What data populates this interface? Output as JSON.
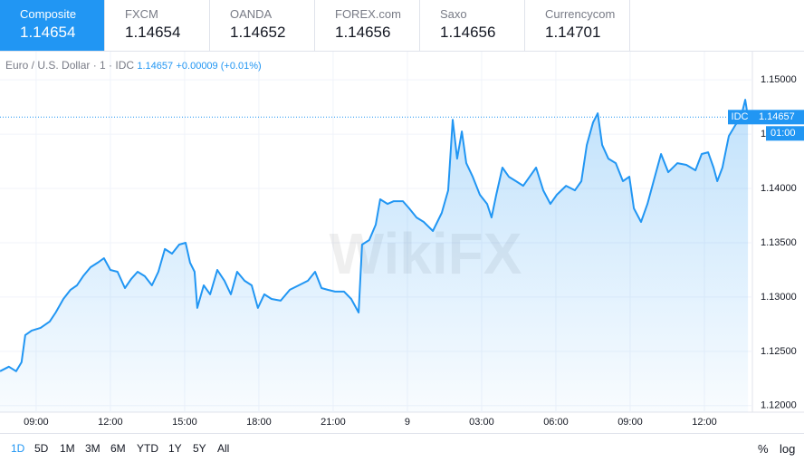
{
  "tabs": [
    {
      "name": "Composite",
      "price": 1.14654,
      "active": true
    },
    {
      "name": "FXCM",
      "price": 1.14654
    },
    {
      "name": "OANDA",
      "price": 1.14652
    },
    {
      "name": "FOREX.com",
      "price": 1.14656
    },
    {
      "name": "Saxo",
      "price": 1.14656
    },
    {
      "name": "Currencycom",
      "price": 1.14701
    }
  ],
  "chart_data": {
    "type": "area-line",
    "watermark": "WikiFX",
    "legend": {
      "change": "+0.00009 (+0.01%)",
      "value": 1.14657
    },
    "price_line": {
      "source": "IDC",
      "value": 1.14657,
      "countdown": "01:00",
      "color": "#2196f3"
    },
    "grid": true,
    "xlim": [
      7.54,
      37.94
    ],
    "ylim": [
      1.1194,
      1.1526
    ],
    "xticks": [
      {
        "value": 9,
        "label": "09:00"
      },
      {
        "value": 12,
        "label": "12:00"
      },
      {
        "value": 15,
        "label": "15:00"
      },
      {
        "value": 18,
        "label": "18:00"
      },
      {
        "value": 21,
        "label": "21:00"
      },
      {
        "value": 24,
        "label": "9"
      },
      {
        "value": 27,
        "label": "03:00"
      },
      {
        "value": 30,
        "label": "06:00"
      },
      {
        "value": 33,
        "label": "09:00"
      },
      {
        "value": 36,
        "label": "12:00"
      }
    ],
    "yticks": [
      {
        "value": 1.12,
        "label": "1.12000"
      },
      {
        "value": 1.125,
        "label": "1.12500"
      },
      {
        "value": 1.13,
        "label": "1.13000"
      },
      {
        "value": 1.135,
        "label": "1.13500"
      },
      {
        "value": 1.14,
        "label": "1.14000"
      },
      {
        "value": 1.145,
        "label": "1.14500"
      },
      {
        "value": 1.15,
        "label": "1.15000"
      }
    ],
    "x": [
      7.54,
      7.9,
      8.19,
      8.41,
      8.56,
      8.82,
      9.18,
      9.55,
      9.79,
      10.1,
      10.39,
      10.65,
      10.9,
      11.2,
      11.49,
      11.74,
      12.0,
      12.29,
      12.59,
      12.84,
      13.1,
      13.39,
      13.68,
      13.94,
      14.2,
      14.49,
      14.78,
      15.04,
      15.22,
      15.4,
      15.51,
      15.77,
      16.03,
      16.32,
      16.61,
      16.87,
      17.12,
      17.42,
      17.71,
      17.96,
      18.22,
      18.51,
      18.88,
      19.25,
      19.61,
      19.98,
      20.27,
      20.53,
      20.78,
      21.08,
      21.44,
      21.73,
      22.03,
      22.17,
      22.46,
      22.72,
      22.9,
      23.2,
      23.45,
      23.82,
      24.07,
      24.37,
      24.66,
      25.03,
      25.39,
      25.65,
      25.83,
      26.01,
      26.2,
      26.38,
      26.64,
      26.93,
      27.22,
      27.4,
      27.59,
      27.84,
      28.1,
      28.39,
      28.68,
      28.94,
      29.2,
      29.49,
      29.78,
      30.04,
      30.41,
      30.77,
      31.03,
      31.25,
      31.5,
      31.69,
      31.87,
      32.12,
      32.42,
      32.71,
      32.97,
      33.15,
      33.44,
      33.7,
      33.95,
      34.25,
      34.54,
      34.91,
      35.27,
      35.64,
      35.89,
      36.15,
      36.37,
      36.52,
      36.73,
      36.99,
      37.25,
      37.47,
      37.65,
      37.76
    ],
    "series": [
      {
        "name": "Euro / U.S. Dollar · 1 · IDC",
        "color": "#2196f3",
        "values": [
          1.12317,
          1.12359,
          1.12317,
          1.124,
          1.1265,
          1.12692,
          1.12717,
          1.12775,
          1.12858,
          1.12983,
          1.13067,
          1.13108,
          1.13192,
          1.13275,
          1.13317,
          1.13358,
          1.1325,
          1.13233,
          1.13083,
          1.13167,
          1.13233,
          1.13192,
          1.13108,
          1.13233,
          1.13442,
          1.134,
          1.13483,
          1.135,
          1.13317,
          1.13233,
          1.129,
          1.13108,
          1.13025,
          1.1325,
          1.1315,
          1.13025,
          1.13233,
          1.1315,
          1.13108,
          1.129,
          1.13025,
          1.12983,
          1.12967,
          1.13067,
          1.13108,
          1.1315,
          1.13233,
          1.13083,
          1.13067,
          1.1305,
          1.1305,
          1.12983,
          1.12858,
          1.13483,
          1.13525,
          1.13667,
          1.139,
          1.13858,
          1.13883,
          1.13883,
          1.13817,
          1.13733,
          1.13692,
          1.13608,
          1.13775,
          1.13983,
          1.14633,
          1.14275,
          1.14525,
          1.14233,
          1.14108,
          1.13942,
          1.13858,
          1.13733,
          1.13942,
          1.14192,
          1.14108,
          1.14067,
          1.14025,
          1.14108,
          1.14192,
          1.13983,
          1.13858,
          1.13942,
          1.14025,
          1.13983,
          1.14067,
          1.144,
          1.14608,
          1.14692,
          1.144,
          1.14275,
          1.14233,
          1.14067,
          1.14108,
          1.13817,
          1.13692,
          1.13858,
          1.14067,
          1.14317,
          1.1415,
          1.14233,
          1.14217,
          1.14167,
          1.14317,
          1.14333,
          1.14192,
          1.14067,
          1.14192,
          1.14483,
          1.14583,
          1.1465,
          1.14817,
          1.14657
        ]
      }
    ]
  },
  "toolbar": {
    "ranges": [
      "1D",
      "5D",
      "1M",
      "3M",
      "6M",
      "YTD",
      "1Y",
      "5Y",
      "All"
    ],
    "active": 0,
    "right": [
      "%",
      "log"
    ]
  }
}
